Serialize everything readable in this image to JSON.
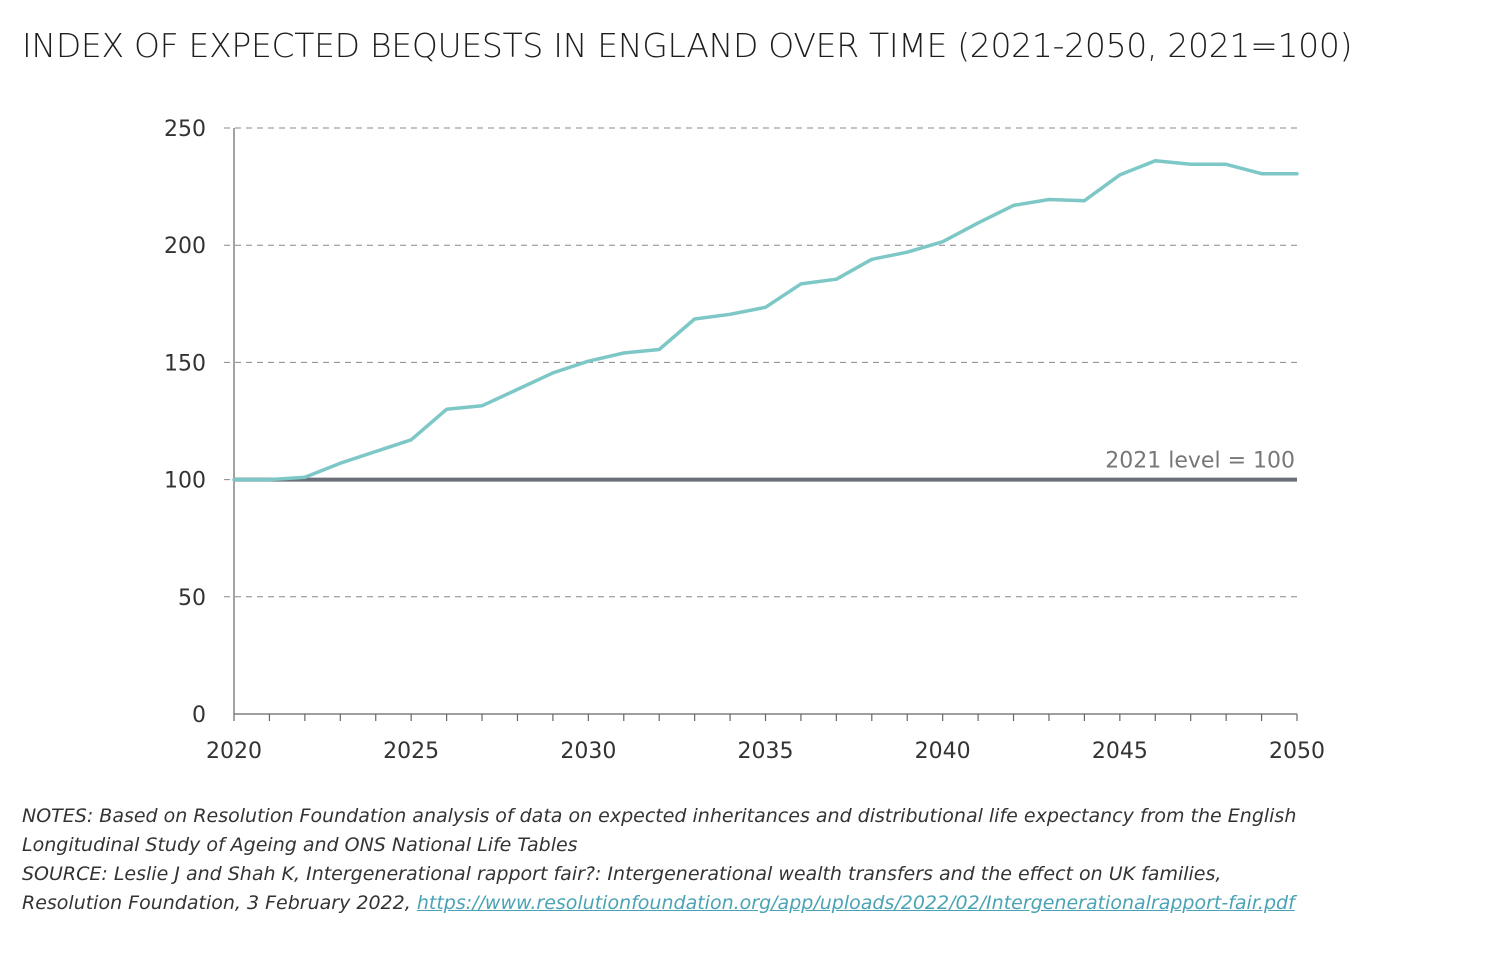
{
  "title": "INDEX OF EXPECTED BEQUESTS IN ENGLAND OVER TIME (2021-2050, 2021=100)",
  "colors": {
    "line": "#7dc8c6",
    "reference_line": "#6b6f78",
    "grid": "#888888",
    "axis": "#666666",
    "link": "#4aa3b5"
  },
  "chart_data": {
    "type": "line",
    "title": "INDEX OF EXPECTED BEQUESTS IN ENGLAND OVER TIME (2021-2050, 2021=100)",
    "xlabel": "",
    "ylabel": "",
    "xlim": [
      2020,
      2050
    ],
    "ylim": [
      0,
      250
    ],
    "x_ticks": [
      2020,
      2025,
      2030,
      2035,
      2040,
      2045,
      2050
    ],
    "y_ticks": [
      0,
      50,
      100,
      150,
      200,
      250
    ],
    "grid": "horizontal dashed",
    "legend": "none",
    "series": [
      {
        "x": [
          2020,
          2021,
          2022,
          2023,
          2024,
          2025,
          2026,
          2027,
          2028,
          2029,
          2030,
          2031,
          2032,
          2033,
          2034,
          2035,
          2036,
          2037,
          2038,
          2039,
          2040,
          2041,
          2042,
          2043,
          2044,
          2045,
          2046,
          2047,
          2048,
          2049,
          2050
        ],
        "values": [
          100,
          100,
          101,
          107,
          112,
          117,
          130,
          131.5,
          138.5,
          145.5,
          150.5,
          154,
          155.5,
          168.5,
          170.5,
          173.5,
          183.5,
          185.5,
          194,
          197,
          201.5,
          209.5,
          217,
          219.5,
          219,
          230,
          236,
          234.5,
          234.5,
          230.5,
          230.5
        ]
      }
    ],
    "reference_line": {
      "value": 100,
      "label": "2021 level = 100"
    }
  },
  "notes": {
    "line1": "NOTES: Based on Resolution Foundation analysis of data on expected inheritances and distributional life expectancy from the English",
    "line2": "Longitudinal Study of Ageing and ONS National Life Tables",
    "line3": "SOURCE: Leslie J and Shah K, Intergenerational rapport fair?: Intergenerational wealth transfers and the effect on UK families,",
    "line4_prefix": "Resolution Foundation, 3 February 2022, ",
    "link": "https://www.resolutionfoundation.org/app/uploads/2022/02/Intergenerationalrapport-fair.pdf"
  }
}
